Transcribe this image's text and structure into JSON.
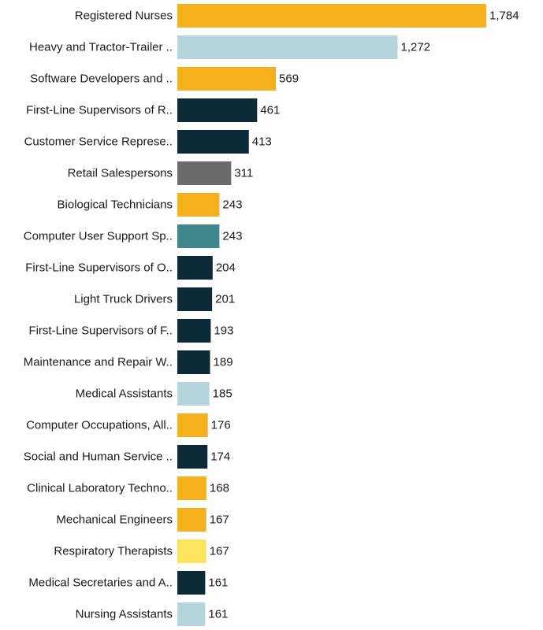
{
  "chart_data": {
    "type": "bar",
    "orientation": "horizontal",
    "title": "",
    "xlabel": "",
    "ylabel": "",
    "grid": false,
    "legend": "none",
    "xlim": [
      0,
      1784
    ],
    "categories": [
      "Registered Nurses",
      "Heavy and Tractor-Trailer ..",
      "Software Developers and ..",
      "First-Line Supervisors of R..",
      "Customer Service Represe..",
      "Retail Salespersons",
      "Biological Technicians",
      "Computer User Support Sp..",
      "First-Line Supervisors of O..",
      "Light Truck Drivers",
      "First-Line Supervisors of F..",
      "Maintenance and Repair W..",
      "Medical Assistants",
      "Computer Occupations, All..",
      "Social and Human Service ..",
      "Clinical Laboratory Techno..",
      "Mechanical Engineers",
      "Respiratory Therapists",
      "Medical Secretaries and A..",
      "Nursing Assistants"
    ],
    "values": [
      1784,
      1272,
      569,
      461,
      413,
      311,
      243,
      243,
      204,
      201,
      193,
      189,
      185,
      176,
      174,
      168,
      167,
      167,
      161,
      161
    ],
    "value_labels": [
      "1,784",
      "1,272",
      "569",
      "461",
      "413",
      "311",
      "243",
      "243",
      "204",
      "201",
      "193",
      "189",
      "185",
      "176",
      "174",
      "168",
      "167",
      "167",
      "161",
      "161"
    ],
    "colors": [
      "#F5B11B",
      "#B5D5DD",
      "#F5B11B",
      "#0C2A38",
      "#0C2A38",
      "#6B6B6B",
      "#F5B11B",
      "#3F878D",
      "#0C2A38",
      "#0C2A38",
      "#0C2A38",
      "#0C2A38",
      "#B5D5DD",
      "#F5B11B",
      "#0C2A38",
      "#F5B11B",
      "#F5B11B",
      "#FEE35D",
      "#0C2A38",
      "#B5D5DD"
    ]
  }
}
